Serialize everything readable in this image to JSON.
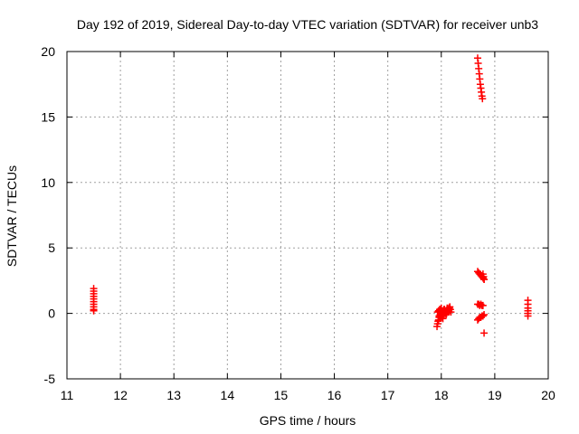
{
  "chart_data": {
    "type": "scatter",
    "title": "Day 192 of 2019, Sidereal Day-to-day VTEC variation (SDTVAR) for receiver unb3",
    "xlabel": "GPS time / hours",
    "ylabel": "SDTVAR / TECUs",
    "xlim": [
      11,
      20
    ],
    "ylim": [
      -5,
      20
    ],
    "xticks": [
      "11",
      "12",
      "13",
      "14",
      "15",
      "16",
      "17",
      "18",
      "19",
      "20"
    ],
    "yticks": [
      "-5",
      "0",
      "5",
      "10",
      "15",
      "20"
    ],
    "grid": true,
    "marker": "+",
    "series": [
      {
        "name": "SDTVAR",
        "color": "#ff0000",
        "x": [
          11.5,
          11.5,
          11.5,
          11.5,
          11.5,
          11.5,
          11.5,
          11.5,
          11.5,
          11.5,
          17.92,
          17.93,
          17.94,
          17.95,
          17.96,
          17.97,
          17.98,
          17.99,
          18.0,
          18.01,
          18.02,
          18.03,
          17.93,
          17.95,
          17.97,
          17.99,
          18.01,
          18.03,
          18.05,
          18.06,
          18.07,
          18.08,
          18.09,
          18.1,
          18.11,
          18.12,
          18.13,
          18.14,
          18.15,
          18.16,
          18.17,
          18.18,
          18.0,
          18.02,
          18.04,
          18.06,
          18.08,
          18.1,
          18.12,
          18.14,
          18.16,
          17.96,
          17.98,
          18.0,
          18.68,
          18.69,
          18.7,
          18.71,
          18.72,
          18.73,
          18.74,
          18.75,
          18.76,
          18.77,
          18.78,
          18.79,
          18.8,
          18.68,
          18.7,
          18.72,
          18.74,
          18.76,
          18.78,
          18.8,
          18.68,
          18.7,
          18.72,
          18.74,
          18.76,
          18.78,
          18.68,
          18.7,
          18.72,
          18.74,
          18.76,
          18.78,
          18.8,
          18.8,
          19.62,
          19.62,
          19.62,
          19.62,
          19.62,
          19.62
        ],
        "y": [
          1.9,
          1.7,
          1.5,
          1.3,
          1.1,
          0.9,
          0.7,
          0.5,
          0.3,
          0.2,
          -1.0,
          -0.8,
          -0.6,
          -0.5,
          -0.3,
          -0.2,
          -0.1,
          0.0,
          0.1,
          0.0,
          -0.2,
          -0.4,
          0.1,
          0.2,
          0.3,
          0.1,
          0.0,
          0.2,
          0.3,
          0.2,
          0.1,
          0.0,
          -0.1,
          0.2,
          0.4,
          0.3,
          0.1,
          0.2,
          0.4,
          0.5,
          0.3,
          0.1,
          -0.3,
          -0.1,
          0.0,
          0.3,
          0.2,
          0.0,
          0.2,
          0.4,
          0.3,
          -0.2,
          0.3,
          0.4,
          19.5,
          19.1,
          18.7,
          18.3,
          17.9,
          17.5,
          17.2,
          16.9,
          16.6,
          16.4,
          3.0,
          2.8,
          2.6,
          3.2,
          3.1,
          3.0,
          2.9,
          2.8,
          2.7,
          2.6,
          0.7,
          0.7,
          0.6,
          0.7,
          0.6,
          0.6,
          -0.5,
          -0.4,
          -0.3,
          -0.3,
          -0.2,
          -0.2,
          -0.1,
          -1.5,
          1.0,
          0.7,
          0.4,
          0.2,
          0.0,
          -0.2
        ]
      }
    ]
  }
}
